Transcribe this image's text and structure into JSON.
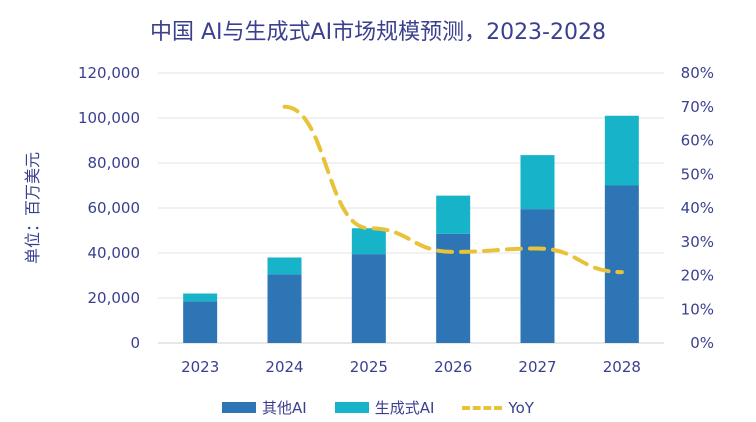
{
  "title": "中国 AI与生成式AI市场规模预测，2023-2028",
  "ylabel_left": "单位：百万美元",
  "colors": {
    "other": "#2e75b6",
    "genai": "#17b3c9",
    "yoy": "#e8c33a",
    "grid": "#e3e3e3",
    "text": "#3a3f8f"
  },
  "chart_data": {
    "type": "bar",
    "stacked": true,
    "categories": [
      "2023",
      "2024",
      "2025",
      "2026",
      "2027",
      "2028"
    ],
    "series": [
      {
        "name": "其他AI",
        "values": [
          18500,
          30500,
          39500,
          48500,
          59500,
          70000
        ]
      },
      {
        "name": "生成式AI",
        "values": [
          3500,
          7500,
          11500,
          17000,
          24000,
          31000
        ]
      }
    ],
    "line_series": {
      "name": "YoY",
      "axis": "right",
      "values": [
        null,
        0.7,
        0.34,
        0.27,
        0.28,
        0.21
      ]
    },
    "ylim_left": [
      0,
      120000
    ],
    "yticks_left": [
      "0",
      "20,000",
      "40,000",
      "60,000",
      "80,000",
      "100,000",
      "120,000"
    ],
    "ylim_right": [
      0,
      0.8
    ],
    "yticks_right": [
      "0%",
      "10%",
      "20%",
      "30%",
      "40%",
      "50%",
      "60%",
      "70%",
      "80%"
    ],
    "grid": true,
    "legend_position": "bottom"
  }
}
